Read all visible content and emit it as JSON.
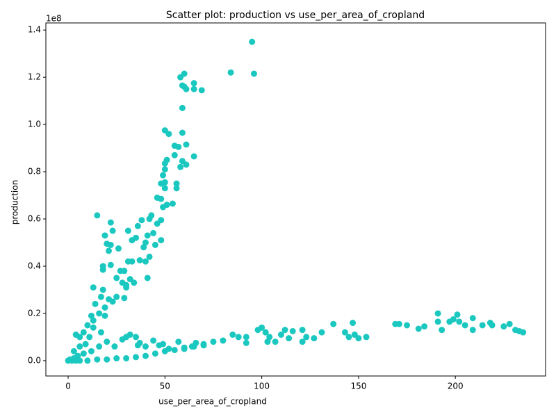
{
  "chart_data": {
    "type": "scatter",
    "title": "Scatter plot: production vs use_per_area_of_cropland",
    "x_label": "use_per_area_of_cropland",
    "y_label": "production",
    "y_offset_label": "1e8",
    "color": "#1ac8c0",
    "xlim": [
      -11.5,
      246.6
    ],
    "ylim": [
      -0.065,
      1.43
    ],
    "xticks": [
      0,
      50,
      100,
      150,
      200
    ],
    "yticks": [
      {
        "value": 0,
        "label": "0.0"
      },
      0.2,
      0.4,
      0.6,
      0.8,
      {
        "value": 1,
        "label": "1.0"
      },
      1.2,
      1.4
    ],
    "x": [
      15,
      22,
      23,
      19,
      20,
      22,
      21,
      26,
      18,
      22,
      18,
      13,
      18,
      17,
      25,
      27,
      29,
      28,
      30,
      31,
      33,
      31,
      33,
      35,
      36,
      38,
      39,
      40,
      41,
      42,
      43,
      44,
      45,
      46,
      48,
      48,
      46,
      48,
      48,
      49,
      50,
      50,
      50,
      50,
      51,
      49,
      51,
      54,
      52,
      50,
      55,
      55,
      57,
      56,
      56,
      58,
      59,
      61,
      61,
      59,
      65,
      59,
      58,
      59,
      60,
      60,
      61,
      65,
      65,
      69,
      84,
      95,
      96,
      41,
      37,
      40,
      42,
      14,
      12,
      16,
      19,
      21,
      23,
      19,
      13,
      10,
      8,
      17,
      6,
      4,
      34,
      30,
      32,
      29,
      25,
      100,
      98,
      102,
      104,
      107,
      103,
      110,
      112,
      116,
      114,
      121,
      121,
      123,
      127,
      131,
      137,
      143,
      145,
      147,
      148,
      150,
      154,
      169,
      171,
      175,
      181,
      184,
      191,
      191,
      193,
      197,
      199,
      201,
      202,
      205,
      209,
      209,
      214,
      218,
      219,
      225,
      228,
      231,
      233,
      235,
      85,
      88,
      92,
      92,
      80,
      75,
      70,
      66,
      64,
      60,
      57,
      52,
      49,
      47,
      44,
      40,
      35,
      32,
      30,
      28,
      24,
      20,
      16,
      12,
      8,
      5,
      3,
      1,
      0,
      2,
      4,
      6,
      10,
      15,
      20,
      25,
      30,
      35,
      40,
      45,
      50,
      55,
      60,
      65,
      70,
      36,
      37,
      6,
      9,
      11,
      13,
      3
    ],
    "values": [
      0.615,
      0.585,
      0.55,
      0.53,
      0.495,
      0.49,
      0.465,
      0.475,
      0.4,
      0.405,
      0.385,
      0.31,
      0.3,
      0.27,
      0.35,
      0.38,
      0.38,
      0.33,
      0.31,
      0.42,
      0.42,
      0.55,
      0.51,
      0.52,
      0.57,
      0.595,
      0.48,
      0.5,
      0.53,
      0.6,
      0.615,
      0.54,
      0.49,
      0.58,
      0.595,
      0.51,
      0.69,
      0.685,
      0.75,
      0.785,
      0.755,
      0.73,
      0.81,
      0.835,
      0.85,
      0.65,
      0.66,
      0.665,
      0.96,
      0.975,
      0.87,
      0.91,
      0.905,
      0.73,
      0.75,
      0.82,
      0.845,
      0.83,
      0.915,
      0.965,
      0.865,
      1.07,
      1.2,
      1.165,
      1.215,
      1.16,
      1.15,
      1.15,
      1.175,
      1.145,
      1.22,
      1.35,
      1.215,
      0.35,
      0.425,
      0.42,
      0.44,
      0.24,
      0.19,
      0.2,
      0.19,
      0.26,
      0.25,
      0.225,
      0.17,
      0.15,
      0.12,
      0.12,
      0.1,
      0.11,
      0.33,
      0.32,
      0.345,
      0.265,
      0.27,
      0.14,
      0.13,
      0.12,
      0.1,
      0.08,
      0.08,
      0.11,
      0.13,
      0.125,
      0.095,
      0.13,
      0.08,
      0.1,
      0.095,
      0.12,
      0.155,
      0.12,
      0.1,
      0.16,
      0.11,
      0.095,
      0.1,
      0.155,
      0.155,
      0.15,
      0.135,
      0.145,
      0.2,
      0.165,
      0.13,
      0.165,
      0.175,
      0.195,
      0.165,
      0.15,
      0.18,
      0.13,
      0.15,
      0.16,
      0.15,
      0.145,
      0.155,
      0.13,
      0.125,
      0.12,
      0.11,
      0.1,
      0.1,
      0.075,
      0.085,
      0.08,
      0.07,
      0.075,
      0.06,
      0.05,
      0.08,
      0.05,
      0.07,
      0.065,
      0.085,
      0.06,
      0.1,
      0.11,
      0.1,
      0.09,
      0.06,
      0.08,
      0.06,
      0.04,
      0.03,
      0.02,
      0.01,
      0.005,
      0,
      0.0,
      0.0,
      0.0,
      0.0,
      0.005,
      0.005,
      0.01,
      0.01,
      0.015,
      0.02,
      0.03,
      0.04,
      0.045,
      0.055,
      0.06,
      0.065,
      0.065,
      0.075,
      0.06,
      0.07,
      0.1,
      0.14,
      0.04
    ]
  }
}
